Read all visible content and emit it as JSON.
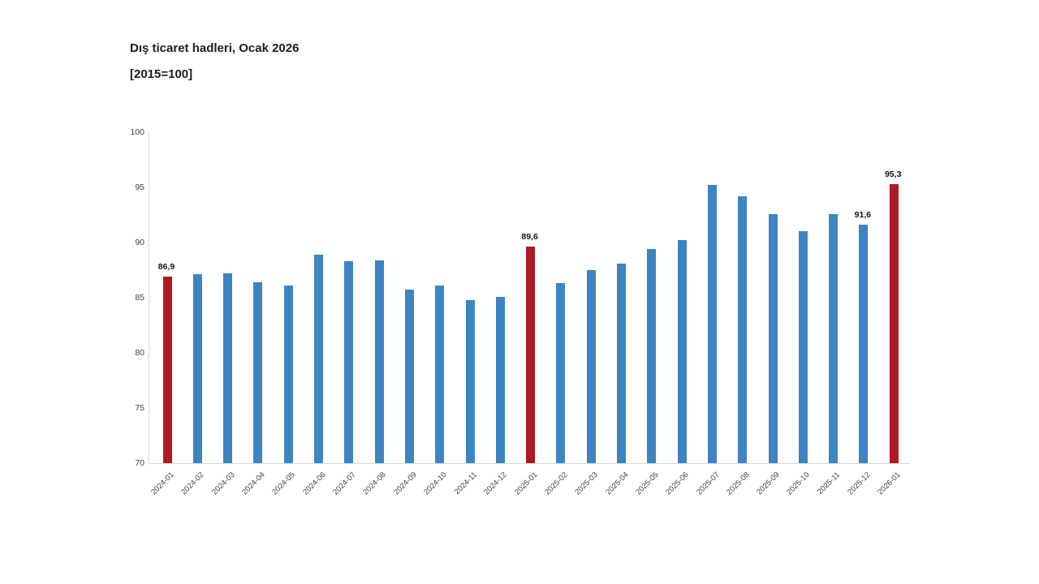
{
  "title": "Dış ticaret hadleri, Ocak 2026",
  "subtitle": "[2015=100]",
  "colors": {
    "bar": "#3c85c1",
    "highlight": "#ad1a24",
    "axis_line": "#d9d9d9",
    "tick_text": "#3f3f3f",
    "title_text": "#1d1d1d"
  },
  "chart_data": {
    "type": "bar",
    "title": "Dış ticaret hadleri, Ocak 2026",
    "subtitle": "[2015=100]",
    "xlabel": "",
    "ylabel": "",
    "ylim": [
      70,
      100
    ],
    "yticks": [
      70,
      75,
      80,
      85,
      90,
      95,
      100
    ],
    "grid": false,
    "legend": null,
    "categories": [
      "2024-01",
      "2024-02",
      "2024-03",
      "2024-04",
      "2024-05",
      "2024-06",
      "2024-07",
      "2024-08",
      "2024-09",
      "2024-10",
      "2024-11",
      "2024-12",
      "2025-01",
      "2025-02",
      "2025-03",
      "2025-04",
      "2025-05",
      "2025-06",
      "2025-07",
      "2025-08",
      "2025-09",
      "2025-10",
      "2025-11",
      "2025-12",
      "2026-01"
    ],
    "values": [
      86.9,
      87.1,
      87.2,
      86.4,
      86.1,
      88.9,
      88.3,
      88.4,
      85.7,
      86.1,
      84.8,
      85.1,
      89.6,
      86.3,
      87.5,
      88.1,
      89.4,
      90.2,
      95.2,
      94.2,
      92.6,
      91.0,
      92.6,
      91.6,
      95.3
    ],
    "highlighted_indices": [
      0,
      12,
      24
    ],
    "value_labels": {
      "0": "86,9",
      "12": "89,6",
      "23": "91,6",
      "24": "95,3"
    }
  }
}
